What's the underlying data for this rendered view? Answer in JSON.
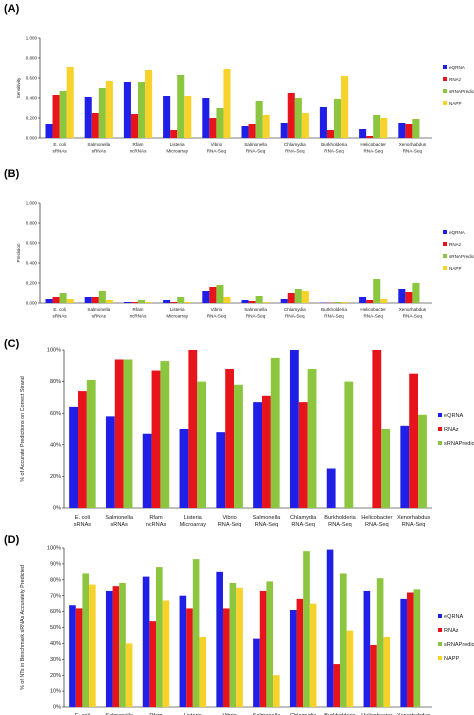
{
  "colors": {
    "eQRNA": "#1f1fe8",
    "RNAz": "#e8141b",
    "sRNAPredict": "#8cc63f",
    "NAPP": "#f7d22b"
  },
  "chart_data": [
    {
      "panel": "(A)",
      "type": "bar",
      "ylabel": "Sensitivity",
      "ylim": [
        0,
        1
      ],
      "yticks": [
        "0.000",
        "0.200",
        "0.400",
        "0.600",
        "0.800",
        "1.000"
      ],
      "ytick_values": [
        0,
        0.2,
        0.4,
        0.6,
        0.8,
        1.0
      ],
      "categories": [
        "E. coli sRNAs",
        "Salmonella sRNAs",
        "Rfam ncRNAs",
        "Listeria Microarray",
        "Vibrio RNA-Seq",
        "Salmonella RNA-Seq",
        "Chlamydia RNA-Seq",
        "Burkholderia RNA-Seq",
        "Helicobacter RNA-Seq",
        "Xenorhabdus RNA-Seq"
      ],
      "series": [
        {
          "name": "eQRNA",
          "values": [
            0.14,
            0.41,
            0.56,
            0.42,
            0.4,
            0.12,
            0.15,
            0.31,
            0.09,
            0.15
          ]
        },
        {
          "name": "RNAz",
          "values": [
            0.43,
            0.25,
            0.24,
            0.08,
            0.2,
            0.14,
            0.45,
            0.08,
            0.02,
            0.14
          ]
        },
        {
          "name": "sRNAPredict",
          "values": [
            0.47,
            0.5,
            0.56,
            0.63,
            0.3,
            0.37,
            0.4,
            0.39,
            0.23,
            0.19
          ]
        },
        {
          "name": "NAPP",
          "values": [
            0.71,
            0.57,
            0.68,
            0.42,
            0.69,
            0.23,
            0.25,
            0.62,
            0.2,
            null
          ]
        }
      ],
      "legend": [
        "eQRNA",
        "RNAz",
        "sRNAPredict",
        "NAPP"
      ],
      "legend_labels": [
        "eQRNA",
        "RNAz",
        "sRNAPredict",
        "NAPP"
      ],
      "legend_position": "right",
      "grid": false
    },
    {
      "panel": "(B)",
      "type": "bar",
      "ylabel": "Precision",
      "ylim": [
        0,
        1
      ],
      "yticks": [
        "0.000",
        "0.200",
        "0.400",
        "0.600",
        "0.800",
        "1.000"
      ],
      "ytick_values": [
        0,
        0.2,
        0.4,
        0.6,
        0.8,
        1.0
      ],
      "categories": [
        "E. coli sRNAs",
        "Salmonella sRNAs",
        "Rfam ncRNAs",
        "Listeria Microarray",
        "Vibrio RNA-Seq",
        "Salmonella RNA-Seq",
        "Chlamydia RNA-Seq",
        "Burkholderia RNA-Seq",
        "Helicobacter RNA-Seq",
        "Xenorhabdus RNA-Seq"
      ],
      "series": [
        {
          "name": "eQRNA",
          "values": [
            0.04,
            0.06,
            0.01,
            0.03,
            0.12,
            0.03,
            0.04,
            0.003,
            0.06,
            0.14
          ]
        },
        {
          "name": "RNAz",
          "values": [
            0.06,
            0.06,
            0.01,
            0.01,
            0.16,
            0.02,
            0.1,
            0.003,
            0.03,
            0.11
          ]
        },
        {
          "name": "sRNAPredict",
          "values": [
            0.1,
            0.12,
            0.03,
            0.06,
            0.18,
            0.07,
            0.14,
            0.01,
            0.24,
            0.2
          ]
        },
        {
          "name": "NAPP",
          "values": [
            0.04,
            0.03,
            0.01,
            0.01,
            0.06,
            0.01,
            0.12,
            0.01,
            0.04,
            null
          ]
        }
      ],
      "legend": [
        "eQRNA",
        "RNAz",
        "sRNAPredict",
        "NAPP"
      ],
      "legend_labels": [
        "eQRNA",
        "RNAz",
        "sRNAPredict",
        "NAPP"
      ],
      "legend_position": "right",
      "grid": false
    },
    {
      "panel": "(C)",
      "type": "bar",
      "ylabel": "% of Accurate Predictions on Correct Strand",
      "ylim": [
        0,
        100
      ],
      "yticks": [
        "0%",
        "20%",
        "40%",
        "60%",
        "80%",
        "100%"
      ],
      "ytick_values": [
        0,
        20,
        40,
        60,
        80,
        100
      ],
      "categories": [
        "E. coli sRNAs",
        "Salmonella sRNAs",
        "Rfam ncRNAs",
        "Listeria Microarray",
        "Vibrio RNA-Seq",
        "Salmonella RNA-Seq",
        "Chlamydia RNA-Seq",
        "Burkholderia RNA-Seq",
        "Helicobacter RNA-Seq",
        "Xenorhabdus RNA-Seq"
      ],
      "series": [
        {
          "name": "eQRNA",
          "values": [
            64,
            58,
            47,
            50,
            48,
            67,
            100,
            25,
            null,
            52
          ]
        },
        {
          "name": "RNAz",
          "values": [
            74,
            94,
            87,
            100,
            88,
            71,
            67,
            null,
            100,
            85
          ]
        },
        {
          "name": "sRNAPredict",
          "values": [
            81,
            94,
            93,
            80,
            78,
            95,
            88,
            80,
            50,
            59
          ]
        }
      ],
      "legend": [
        "eQRNA",
        "RNAz",
        "sRNAPredict"
      ],
      "legend_labels": [
        "eQRNA",
        "RNAz",
        "sRNAPredict"
      ],
      "legend_position": "right",
      "grid": false
    },
    {
      "panel": "(D)",
      "type": "bar",
      "ylabel": "% of NTs in Benchmark sRNAs Accurately Predicted",
      "ylim": [
        0,
        100
      ],
      "yticks": [
        "0%",
        "10%",
        "20%",
        "30%",
        "40%",
        "50%",
        "60%",
        "70%",
        "80%",
        "90%",
        "100%"
      ],
      "ytick_values": [
        0,
        10,
        20,
        30,
        40,
        50,
        60,
        70,
        80,
        90,
        100
      ],
      "categories": [
        "E. coli sRNAs",
        "Salmonella sRNAs",
        "Rfam ncRNAs",
        "Listeria Microarray",
        "Vibrio RNA-Seq",
        "Salmonella RNA-Seq",
        "Chlamydia RNA-Seq",
        "Burkholderia RNA-Seq",
        "Helicobacter RNA-Seq",
        "Xenorhabdus RNA-Seq"
      ],
      "series": [
        {
          "name": "eQRNA",
          "values": [
            64,
            73,
            82,
            70,
            85,
            43,
            61,
            99,
            73,
            68
          ]
        },
        {
          "name": "RNAz",
          "values": [
            62,
            76,
            54,
            62,
            62,
            73,
            68,
            27,
            39,
            72
          ]
        },
        {
          "name": "sRNAPredict",
          "values": [
            84,
            78,
            88,
            93,
            78,
            79,
            98,
            84,
            81,
            74
          ]
        },
        {
          "name": "NAPP",
          "values": [
            77,
            40,
            67,
            44,
            75,
            20,
            65,
            48,
            44,
            null
          ]
        }
      ],
      "legend": [
        "eQRNA",
        "RNAz",
        "sRNAPredict",
        "NAPP"
      ],
      "legend_labels": [
        "eQRNA",
        "RNAz",
        "sRNAPredicti",
        "NAPP"
      ],
      "legend_position": "right",
      "grid": false
    }
  ]
}
